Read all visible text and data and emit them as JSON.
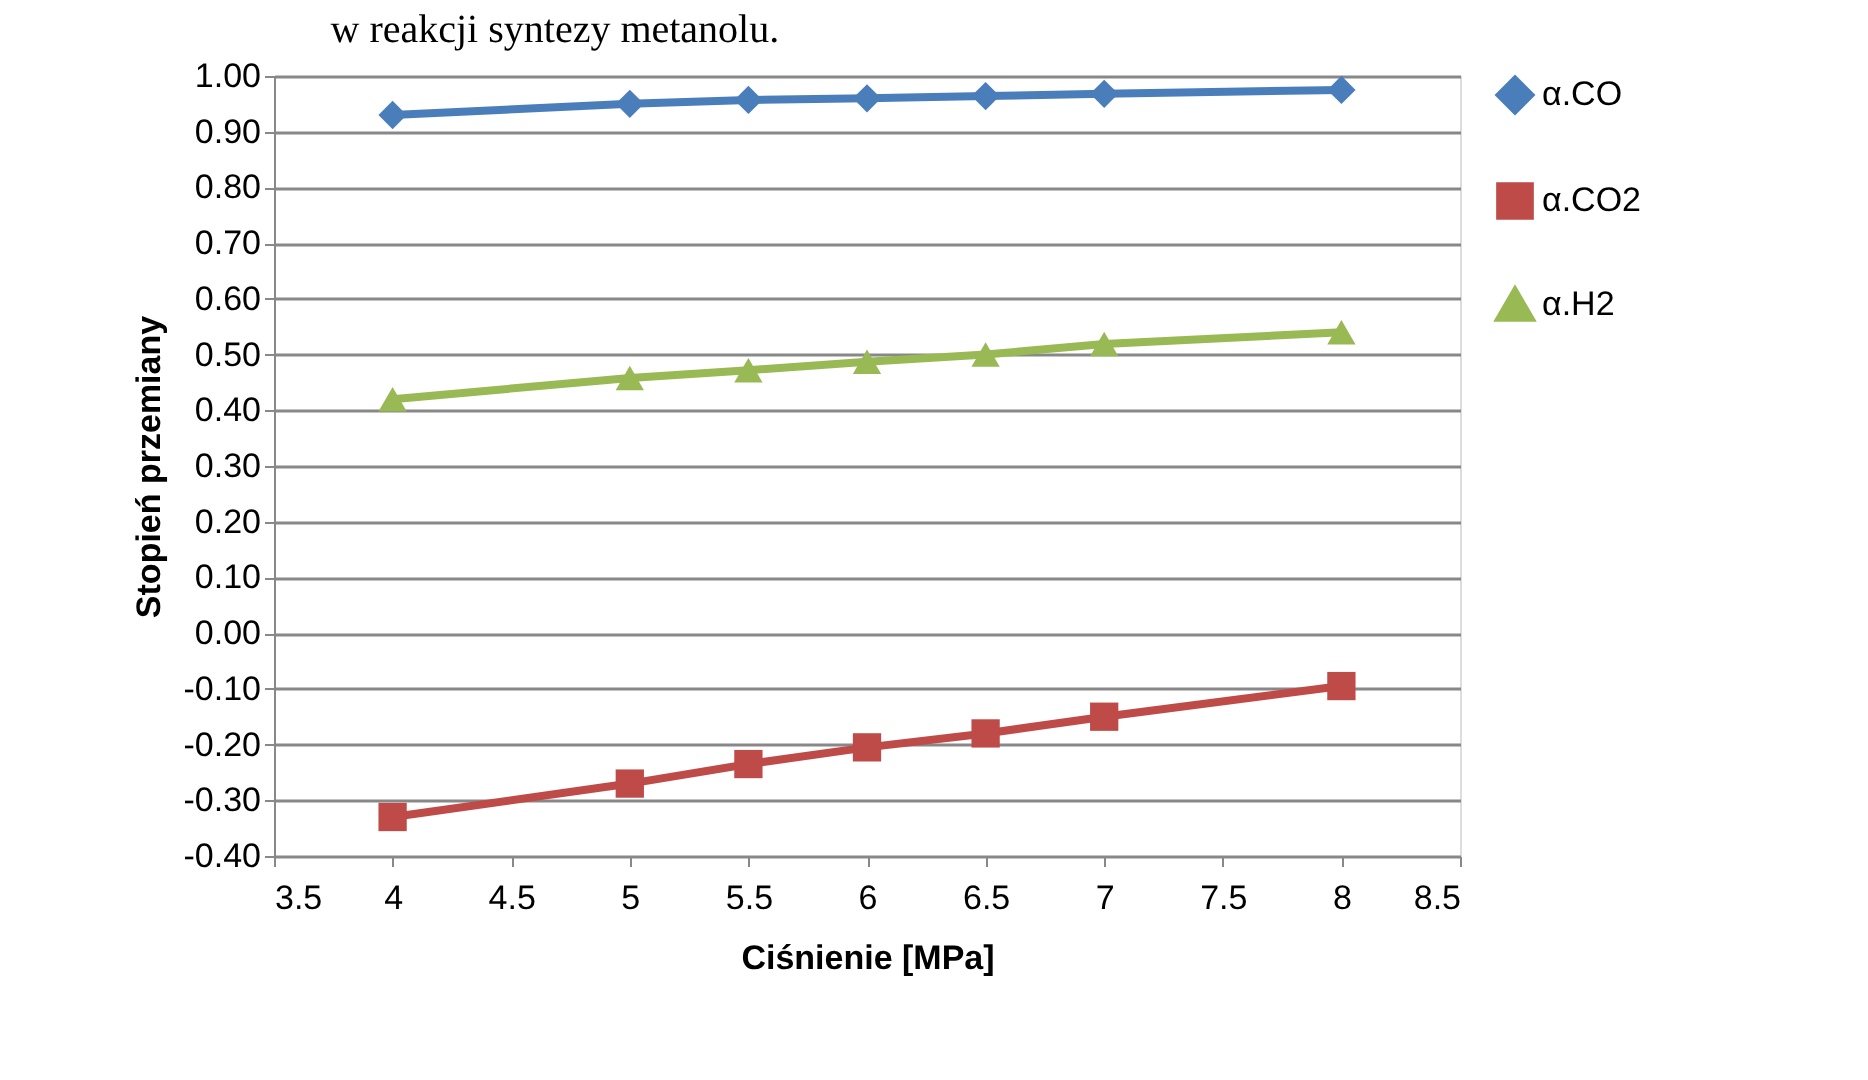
{
  "chart_data": {
    "type": "line",
    "title": "w reakcji syntezy metanolu.",
    "xlabel": "Ciśnienie [MPa]",
    "ylabel": "Stopień przemiany",
    "x": [
      4,
      5,
      5.5,
      6,
      6.5,
      7,
      8
    ],
    "series": [
      {
        "name": "α.CO",
        "color": "#4a7ebb",
        "marker": "diamond",
        "values": [
          0.93,
          0.95,
          0.957,
          0.96,
          0.964,
          0.968,
          0.975
        ]
      },
      {
        "name": "α.CO2",
        "color": "#be4b48",
        "marker": "square",
        "values": [
          -0.33,
          -0.27,
          -0.235,
          -0.205,
          -0.18,
          -0.15,
          -0.095
        ]
      },
      {
        "name": "α.H2",
        "color": "#98b954",
        "marker": "triangle",
        "values": [
          0.42,
          0.458,
          0.472,
          0.487,
          0.5,
          0.519,
          0.54
        ]
      }
    ],
    "xlim": [
      3.5,
      8.5
    ],
    "xticks": [
      3.5,
      4,
      4.5,
      5,
      5.5,
      6,
      6.5,
      7,
      7.5,
      8,
      8.5
    ],
    "ylim": [
      -0.4,
      1.0
    ],
    "yticks": [
      {
        "value": -0.4,
        "label": "-0.40"
      },
      {
        "value": -0.3,
        "label": "-0.30"
      },
      {
        "value": -0.2,
        "label": "-0.20"
      },
      {
        "value": -0.1,
        "label": "-0.10"
      },
      {
        "value": 0,
        "label": "0.00"
      },
      {
        "value": 0.1,
        "label": "0.10"
      },
      {
        "value": 0.2,
        "label": "0.20"
      },
      {
        "value": 0.3,
        "label": "0.30"
      },
      {
        "value": 0.4,
        "label": "0.40"
      },
      {
        "value": 0.5,
        "label": "0.50"
      },
      {
        "value": 0.6,
        "label": "0.60"
      },
      {
        "value": 0.7,
        "label": "0.70"
      },
      {
        "value": 0.8,
        "label": "0.80"
      },
      {
        "value": 0.9,
        "label": "0.90"
      },
      {
        "value": 1.0,
        "label": "1.00"
      }
    ],
    "grid": "y",
    "legend": "right",
    "line_style": "solid"
  }
}
